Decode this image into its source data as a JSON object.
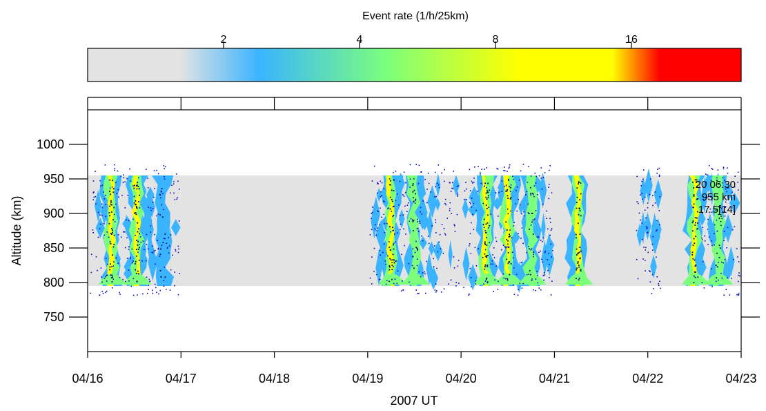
{
  "chart_data": {
    "type": "heatmap",
    "title": "",
    "colorbar": {
      "label": "Event rate (1/h/25km)",
      "ticks": [
        {
          "value": 2,
          "label": "2"
        },
        {
          "value": 4,
          "label": "4"
        },
        {
          "value": 8,
          "label": "8"
        },
        {
          "value": 16,
          "label": "16"
        }
      ],
      "range": [
        1,
        28
      ],
      "stops": [
        {
          "value": 1.0,
          "color": "#e3e3e3"
        },
        {
          "value": 1.6,
          "color": "#e3e3e3"
        },
        {
          "value": 2.4,
          "color": "#3ab4ff"
        },
        {
          "value": 4.6,
          "color": "#7cff7c"
        },
        {
          "value": 9.0,
          "color": "#ffff00"
        },
        {
          "value": 14.5,
          "color": "#ffff00"
        },
        {
          "value": 16.0,
          "color": "#ff9900"
        },
        {
          "value": 18.5,
          "color": "#ff0000"
        },
        {
          "value": 28.0,
          "color": "#ff0000"
        }
      ]
    },
    "xlabel": "2007 UT",
    "ylabel": "Altitude (km)",
    "xlim": [
      "2007-04-16",
      "2007-04-23"
    ],
    "x_ticks": [
      "04/16",
      "04/17",
      "04/18",
      "04/19",
      "04/20",
      "04/21",
      "04/22",
      "04/23"
    ],
    "ylim": [
      700,
      1050
    ],
    "y_ticks": [
      750,
      800,
      850,
      900,
      950,
      1000
    ],
    "grid": false,
    "measured_altitude_band_km": [
      795,
      955
    ],
    "observation_intervals_day": [
      [
        0.0,
        1.0
      ],
      [
        3.0,
        4.0
      ],
      [
        4.0,
        5.0
      ],
      [
        5.85,
        6.15
      ],
      [
        6.55,
        7.0
      ]
    ],
    "series": [
      {
        "peak_day": 0.25,
        "peak_rate": 12
      },
      {
        "peak_day": 0.52,
        "peak_rate": 14
      },
      {
        "peak_day": 0.8,
        "peak_rate": 4
      },
      {
        "peak_day": 3.25,
        "peak_rate": 11
      },
      {
        "peak_day": 3.5,
        "peak_rate": 6
      },
      {
        "peak_day": 4.27,
        "peak_rate": 13
      },
      {
        "peak_day": 4.5,
        "peak_rate": 9
      },
      {
        "peak_day": 4.75,
        "peak_rate": 5
      },
      {
        "peak_day": 5.25,
        "peak_rate": 13
      },
      {
        "peak_day": 6.5,
        "peak_rate": 14
      },
      {
        "peak_day": 6.75,
        "peak_rate": 5
      }
    ],
    "annotation": [
      "20 06:30",
      "955 km",
      "17.5[14]"
    ]
  }
}
